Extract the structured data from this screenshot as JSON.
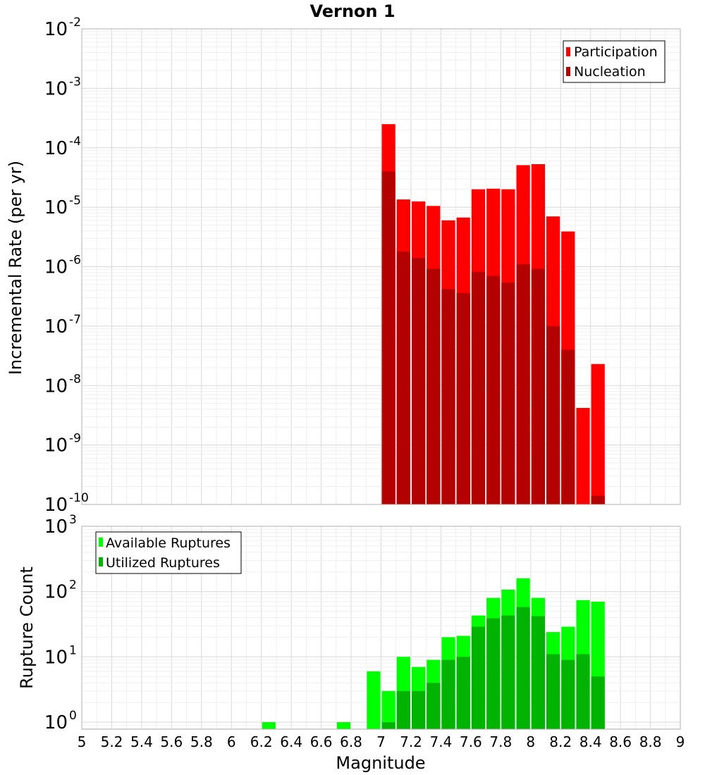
{
  "title": "Vernon 1",
  "chart_data": [
    {
      "type": "bar",
      "panel": "rate",
      "ylabel": "Incremental Rate (per yr)",
      "yscale": "log",
      "ylim": [
        1e-10,
        0.01
      ],
      "y_ticks": [
        {
          "base": "10",
          "exp": "-10"
        },
        {
          "base": "10",
          "exp": "-9"
        },
        {
          "base": "10",
          "exp": "-8"
        },
        {
          "base": "10",
          "exp": "-7"
        },
        {
          "base": "10",
          "exp": "-6"
        },
        {
          "base": "10",
          "exp": "-5"
        },
        {
          "base": "10",
          "exp": "-4"
        },
        {
          "base": "10",
          "exp": "-3"
        },
        {
          "base": "10",
          "exp": "-2"
        }
      ],
      "legend_position": "top-right",
      "x": [
        7.05,
        7.15,
        7.25,
        7.35,
        7.45,
        7.55,
        7.65,
        7.75,
        7.85,
        7.95,
        8.05,
        8.15,
        8.25,
        8.35,
        8.45
      ],
      "series": [
        {
          "name": "Participation",
          "color": "#ff0000",
          "values": [
            0.00025,
            1.35e-05,
            1.25e-05,
            1.05e-05,
            6e-06,
            6.7e-06,
            2e-05,
            2.05e-05,
            2e-05,
            5.1e-05,
            5.3e-05,
            7e-06,
            3.9e-06,
            4.2e-09,
            2.3e-08
          ]
        },
        {
          "name": "Nucleation",
          "color": "#b30000",
          "values": [
            4e-05,
            1.8e-06,
            1.4e-06,
            9.2e-07,
            4.2e-07,
            3.6e-07,
            8.2e-07,
            7e-07,
            5.4e-07,
            1.1e-06,
            9.2e-07,
            1e-07,
            4e-08,
            null,
            1.4e-10
          ]
        }
      ]
    },
    {
      "type": "bar",
      "panel": "count",
      "xlabel": "Magnitude",
      "ylabel": "Rupture Count",
      "yscale": "log",
      "ylim": [
        0.78,
        1000
      ],
      "y_ticks": [
        {
          "base": "10",
          "exp": "0"
        },
        {
          "base": "10",
          "exp": "1"
        },
        {
          "base": "10",
          "exp": "2"
        },
        {
          "base": "10",
          "exp": "3"
        }
      ],
      "xlim": [
        5,
        9
      ],
      "x_ticks": [
        "5",
        "5.2",
        "5.4",
        "5.6",
        "5.8",
        "6",
        "6.2",
        "6.4",
        "6.6",
        "6.8",
        "7",
        "7.2",
        "7.4",
        "7.6",
        "7.8",
        "8",
        "8.2",
        "8.4",
        "8.6",
        "8.8",
        "9"
      ],
      "legend_position": "top-left",
      "x": [
        6.25,
        6.75,
        6.95,
        7.05,
        7.15,
        7.25,
        7.35,
        7.45,
        7.55,
        7.65,
        7.75,
        7.85,
        7.95,
        8.05,
        8.15,
        8.25,
        8.35,
        8.45
      ],
      "series": [
        {
          "name": "Available Ruptures",
          "color": "#00ff00",
          "values": [
            1,
            1,
            6,
            3,
            10,
            7,
            9,
            20,
            21,
            43,
            80,
            107,
            160,
            80,
            24,
            29,
            74,
            70
          ]
        },
        {
          "name": "Utilized Ruptures",
          "color": "#00b300",
          "values": [
            null,
            null,
            null,
            1,
            3,
            3,
            4,
            9,
            10,
            29,
            39,
            43,
            58,
            42,
            11,
            9,
            11,
            5
          ]
        }
      ]
    }
  ]
}
